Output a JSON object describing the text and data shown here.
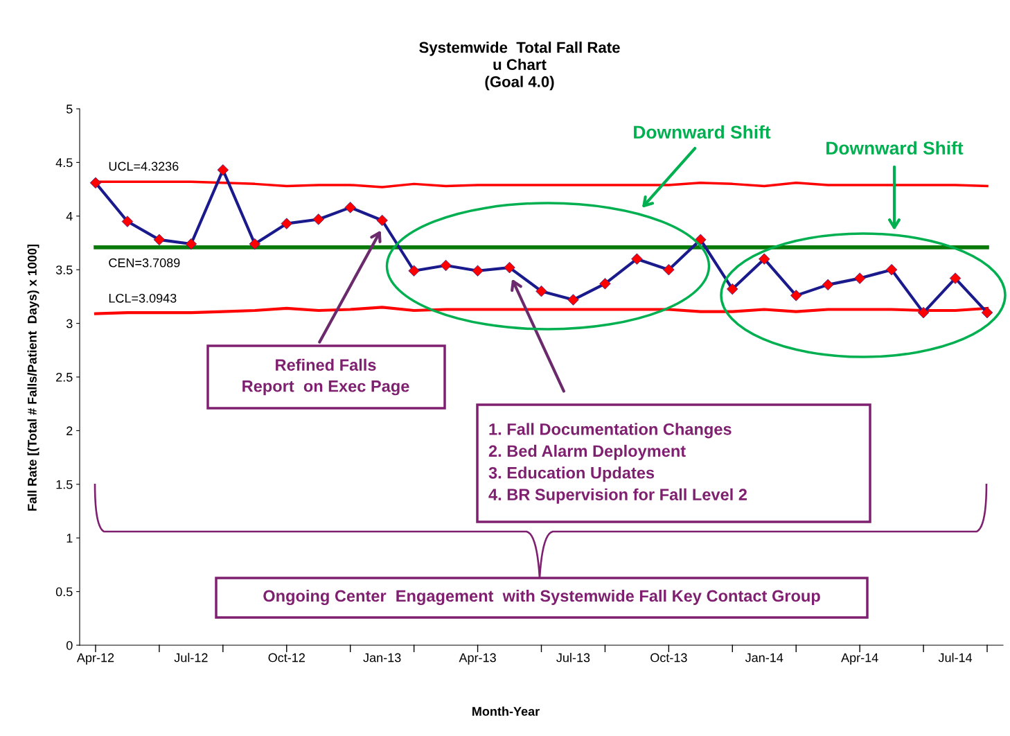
{
  "chart_data": {
    "type": "line",
    "title": "Systemwide  Total Fall Rate\nu Chart\n(Goal 4.0)",
    "xlabel": "Month-Year",
    "ylabel": "Fall Rate [(Total # Falls/Patient  Days) x 1000]",
    "categories": [
      "Apr-12",
      null,
      null,
      "Jul-12",
      null,
      null,
      "Oct-12",
      null,
      null,
      "Jan-13",
      null,
      null,
      "Apr-13",
      null,
      null,
      "Jul-13",
      null,
      null,
      "Oct-13",
      null,
      null,
      "Jan-14",
      null,
      null,
      "Apr-14",
      null,
      null,
      "Jul-14",
      null
    ],
    "series": [
      {
        "name": "UCL=4.3236",
        "color": "#ff0000",
        "marker": "none",
        "values": [
          4.32,
          4.32,
          4.32,
          4.32,
          4.31,
          4.3,
          4.28,
          4.29,
          4.29,
          4.27,
          4.3,
          4.28,
          4.29,
          4.29,
          4.29,
          4.29,
          4.29,
          4.29,
          4.29,
          4.31,
          4.3,
          4.28,
          4.31,
          4.29,
          4.29,
          4.29,
          4.29,
          4.29,
          4.28
        ]
      },
      {
        "name": "LCL=3.0943",
        "color": "#ff0000",
        "marker": "none",
        "values": [
          3.09,
          3.1,
          3.1,
          3.1,
          3.11,
          3.12,
          3.14,
          3.12,
          3.13,
          3.15,
          3.12,
          3.13,
          3.13,
          3.13,
          3.13,
          3.13,
          3.13,
          3.13,
          3.13,
          3.11,
          3.11,
          3.13,
          3.11,
          3.13,
          3.13,
          3.13,
          3.12,
          3.12,
          3.14
        ]
      },
      {
        "color": "#1a1a8c",
        "marker": "diamond",
        "values": [
          4.31,
          3.95,
          3.78,
          3.74,
          4.43,
          3.74,
          3.93,
          3.97,
          4.08,
          3.96,
          3.49,
          3.54,
          3.49,
          3.52,
          3.3,
          3.22,
          3.37,
          3.6,
          3.5,
          3.78,
          3.32,
          3.6,
          3.26,
          3.36,
          3.42,
          3.5,
          3.1,
          3.42,
          3.1
        ]
      }
    ],
    "ref_lines": [
      {
        "axis": "y",
        "value": 3.7089,
        "label": "CEN=3.7089",
        "color": "#0a7a0a"
      }
    ],
    "ylim": [
      0,
      5
    ],
    "yticks": [
      0,
      0.5,
      1,
      1.5,
      2,
      2.5,
      3,
      3.5,
      4,
      4.5,
      5
    ],
    "grid": false,
    "legend": false,
    "annotations": [
      "Downward Shift",
      "Downward Shift",
      "Refined Falls\nReport  on Exec Page",
      "1. Fall Documentation Changes\n2. Bed Alarm Deployment\n3. Education Updates\n4. BR Supervision for Fall Level 2",
      "Ongoing Center  Engagement  with Systemwide Fall Key Contact Group"
    ]
  }
}
